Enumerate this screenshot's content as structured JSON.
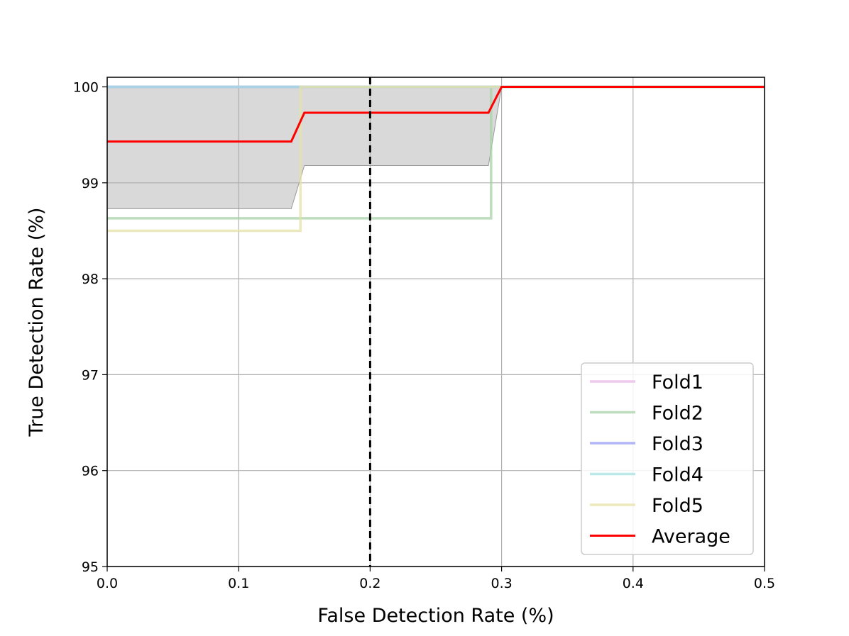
{
  "chart_data": {
    "type": "line",
    "title": "",
    "xlabel": "False Detection Rate (%)",
    "ylabel": "True Detection Rate (%)",
    "xlim": [
      0.0,
      0.5
    ],
    "ylim": [
      95,
      100.1
    ],
    "xticks": [
      "0.0",
      "0.1",
      "0.2",
      "0.3",
      "0.4",
      "0.5"
    ],
    "yticks": [
      "95",
      "96",
      "97",
      "98",
      "99",
      "100"
    ],
    "grid": true,
    "legend_position": "lower-right",
    "threshold_line": {
      "x": 0.2,
      "style": "dashed",
      "color": "#000000"
    },
    "band": {
      "color": "#aaaaaa",
      "upper": {
        "x": [
          0.0,
          0.5
        ],
        "y": [
          100.0,
          100.0
        ]
      },
      "lower": {
        "x": [
          0.0,
          0.14,
          0.15,
          0.29,
          0.3,
          0.5
        ],
        "y": [
          98.73,
          98.73,
          99.18,
          99.18,
          100.0,
          100.0
        ]
      }
    },
    "series": [
      {
        "name": "Fold1",
        "color": "#e8b7e8",
        "x": [
          0.0,
          0.5
        ],
        "y": [
          100.0,
          100.0
        ]
      },
      {
        "name": "Fold2",
        "color": "#a8d2a8",
        "x": [
          0.0,
          0.292,
          0.292,
          0.5
        ],
        "y": [
          98.63,
          98.63,
          100.0,
          100.0
        ]
      },
      {
        "name": "Fold3",
        "color": "#9a9ef2",
        "x": [
          0.0,
          0.5
        ],
        "y": [
          100.0,
          100.0
        ]
      },
      {
        "name": "Fold4",
        "color": "#a8e2e2",
        "x": [
          0.0,
          0.5
        ],
        "y": [
          100.0,
          100.0
        ]
      },
      {
        "name": "Fold5",
        "color": "#e6e2a6",
        "x": [
          0.0,
          0.147,
          0.147,
          0.5
        ],
        "y": [
          98.5,
          98.5,
          100.0,
          100.0
        ]
      },
      {
        "name": "Average",
        "color": "#ff0000",
        "x": [
          0.0,
          0.14,
          0.15,
          0.29,
          0.3,
          0.5
        ],
        "y": [
          99.43,
          99.43,
          99.73,
          99.73,
          100.0,
          100.0
        ]
      }
    ]
  }
}
